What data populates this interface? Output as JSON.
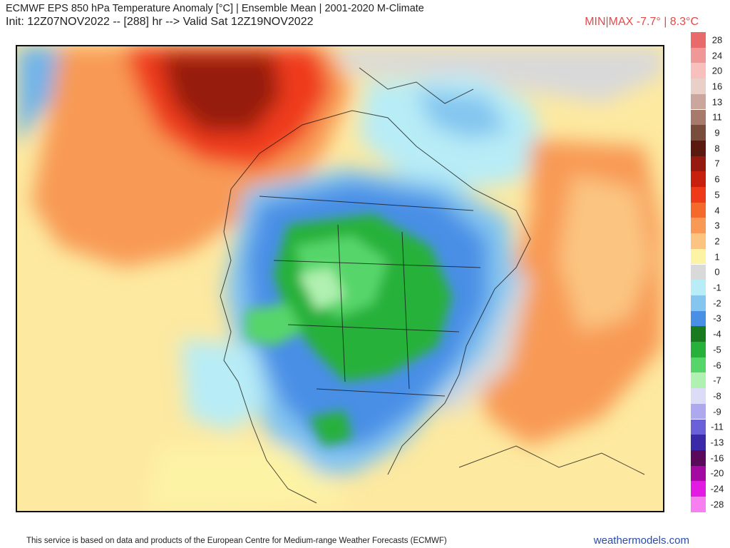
{
  "header": {
    "title": "ECMWF EPS 850 hPa Temperature Anomaly [°C] | Ensemble Mean | 2001-2020 M-Climate",
    "subtitle": "Init: 12Z07NOV2022 -- [288] hr --> Valid Sat 12Z19NOV2022",
    "minmax": "MIN|MAX -7.7° | 8.3°C"
  },
  "legend": {
    "entries": [
      {
        "label": "28",
        "color": "#e86a6a"
      },
      {
        "label": "24",
        "color": "#f09898"
      },
      {
        "label": "20",
        "color": "#f7c0bc"
      },
      {
        "label": "16",
        "color": "#e8cfc8"
      },
      {
        "label": "13",
        "color": "#caa69c"
      },
      {
        "label": "11",
        "color": "#a87a6c"
      },
      {
        "label": "9",
        "color": "#7a4c3c"
      },
      {
        "label": "8",
        "color": "#5a1a10"
      },
      {
        "label": "7",
        "color": "#961a10"
      },
      {
        "label": "6",
        "color": "#c8200e"
      },
      {
        "label": "5",
        "color": "#ef3a1a"
      },
      {
        "label": "4",
        "color": "#f56a2a"
      },
      {
        "label": "3",
        "color": "#f89a55"
      },
      {
        "label": "2",
        "color": "#fbc581"
      },
      {
        "label": "1",
        "color": "#fdf3a5"
      },
      {
        "label": "0",
        "color": "#d9d9d9"
      },
      {
        "label": "-1",
        "color": "#b8ecf6"
      },
      {
        "label": "-2",
        "color": "#84c6f0"
      },
      {
        "label": "-3",
        "color": "#4a8fe6"
      },
      {
        "label": "-4",
        "color": "#1a7a20"
      },
      {
        "label": "-5",
        "color": "#27b13a"
      },
      {
        "label": "-6",
        "color": "#56d66a"
      },
      {
        "label": "-7",
        "color": "#b0f0b0"
      },
      {
        "label": "-8",
        "color": "#dcdcf6"
      },
      {
        "label": "-9",
        "color": "#aea8ee"
      },
      {
        "label": "-11",
        "color": "#6a60d8"
      },
      {
        "label": "-13",
        "color": "#3a2aa8"
      },
      {
        "label": "-16",
        "color": "#5a0a5a"
      },
      {
        "label": "-20",
        "color": "#a20aa2"
      },
      {
        "label": "-24",
        "color": "#e21ae2"
      },
      {
        "label": "-28",
        "color": "#f680f0"
      }
    ]
  },
  "footer": {
    "attribution": "This service is based on data and products of the European Centre for Medium-range Weather Forecasts (ECMWF)",
    "site": "weathermodels.com"
  }
}
